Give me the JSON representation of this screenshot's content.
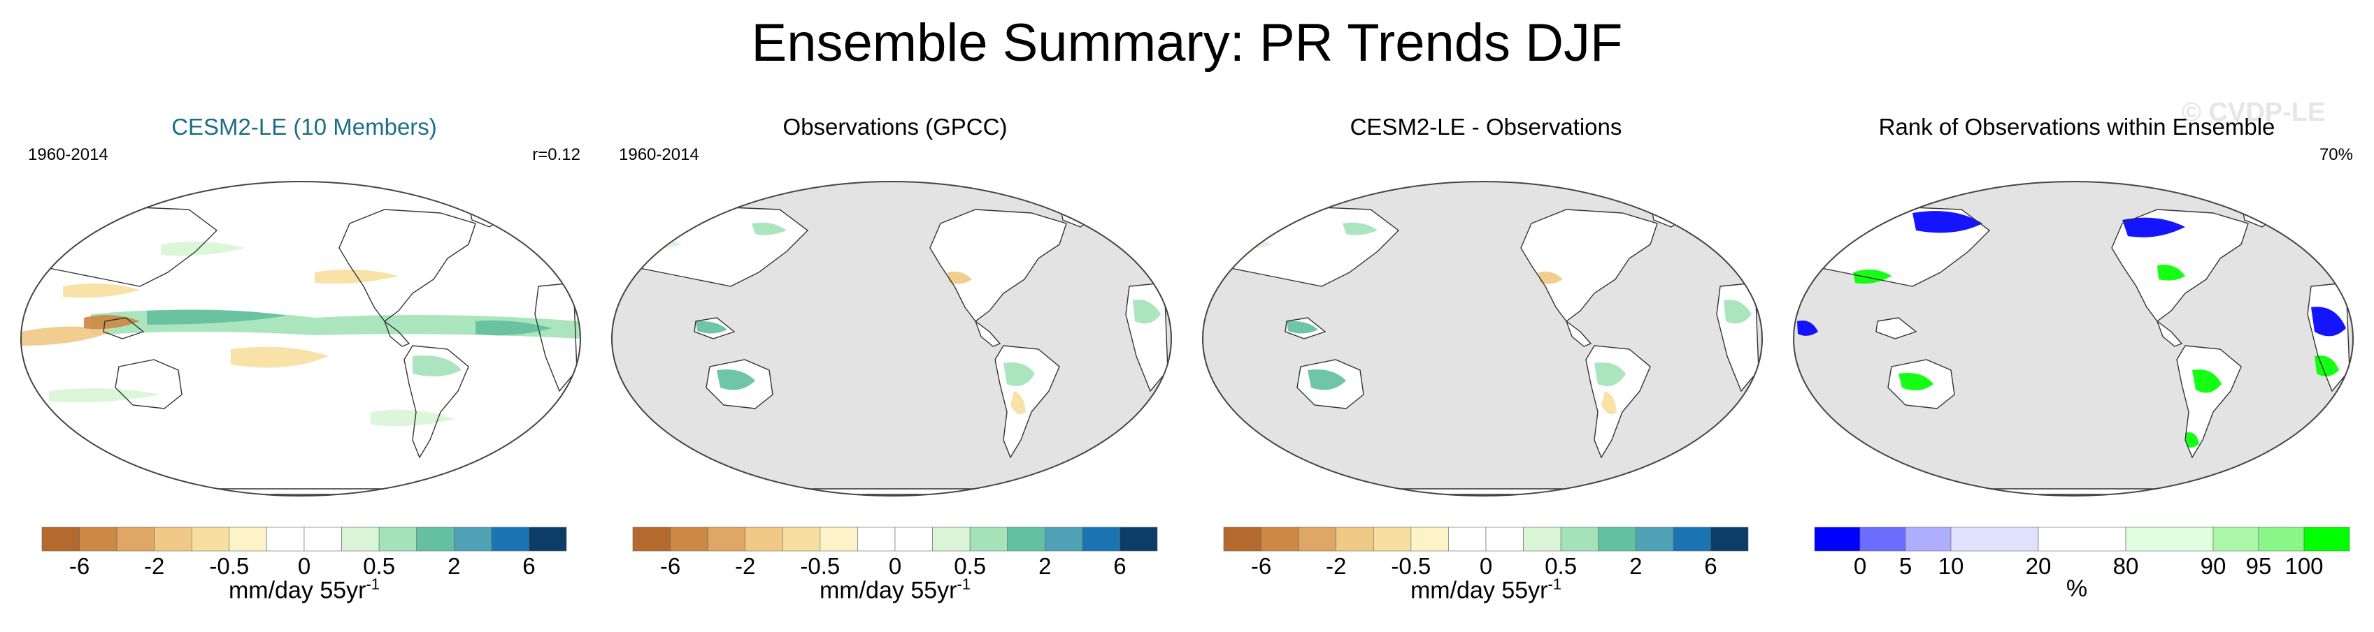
{
  "title": "Ensemble Summary: PR Trends DJF",
  "watermark": "© CVDP-LE",
  "colors": {
    "ocean_gray": "#e3e3e3",
    "trend_palette": [
      "#b46a2d",
      "#cd8844",
      "#e0a664",
      "#f1c987",
      "#f7df9f",
      "#fcf3c8",
      "#ffffff",
      "#ffffff",
      "#d9f5d6",
      "#a4e3b7",
      "#63c0a1",
      "#4fa1b5",
      "#1b74b2",
      "#0c3d68"
    ],
    "rank_palette": [
      "#0000ff",
      "#6c6cff",
      "#aeaeff",
      "#e0e0ff",
      "#ffffff",
      "#dfffdf",
      "#aaf7aa",
      "#88f788",
      "#00ff00"
    ]
  },
  "panels": [
    {
      "title": "CESM2-LE (10 Members)",
      "years": "1960-2014",
      "corner": "r=0.12",
      "colorbar": "trend",
      "land_only": false
    },
    {
      "title": "Observations (GPCC)",
      "years": "1960-2014",
      "corner": "",
      "colorbar": "trend",
      "land_only": true
    },
    {
      "title": "CESM2-LE - Observations",
      "years": "",
      "corner": "",
      "colorbar": "trend",
      "land_only": true
    },
    {
      "title": "Rank of Observations within Ensemble",
      "years": "",
      "corner": "70%",
      "colorbar": "rank",
      "land_only": true
    }
  ],
  "colorbars": {
    "trend": {
      "ticks": [
        "-6",
        "-2",
        "-0.5",
        "0",
        "0.5",
        "2",
        "6"
      ],
      "label": "mm/day 55yr",
      "label_sup": "-1"
    },
    "rank": {
      "ticks": [
        "0",
        "5",
        "10",
        "20",
        "80",
        "90",
        "95",
        "100"
      ],
      "label": "%",
      "label_sup": ""
    }
  },
  "chart_data": [
    {
      "type": "heatmap",
      "title": "CESM2-LE (10 Members)",
      "period": "1960-2014",
      "pattern_correlation": 0.12,
      "units": "mm/day 55yr-1",
      "levels": [
        -6,
        -4,
        -2,
        -1,
        -0.5,
        -0.2,
        0,
        0.2,
        0.5,
        1,
        2,
        4,
        6
      ],
      "notable_features": [
        "positive trend band across equatorial and central Pacific",
        "drying in western/central tropical Pacific north of equator",
        "positive trends tropical Atlantic"
      ]
    },
    {
      "type": "heatmap",
      "title": "Observations (GPCC)",
      "period": "1960-2014",
      "units": "mm/day 55yr-1",
      "land_only": true,
      "levels": [
        -6,
        -4,
        -2,
        -1,
        -0.5,
        -0.2,
        0,
        0.2,
        0.5,
        1,
        2,
        4,
        6
      ]
    },
    {
      "type": "heatmap",
      "title": "CESM2-LE - Observations",
      "units": "mm/day 55yr-1",
      "land_only": true,
      "levels": [
        -6,
        -4,
        -2,
        -1,
        -0.5,
        -0.2,
        0,
        0.2,
        0.5,
        1,
        2,
        4,
        6
      ]
    },
    {
      "type": "heatmap",
      "title": "Rank of Observations within Ensemble",
      "summary": "70%",
      "units": "%",
      "levels": [
        0,
        5,
        10,
        20,
        80,
        90,
        95,
        100
      ]
    }
  ]
}
